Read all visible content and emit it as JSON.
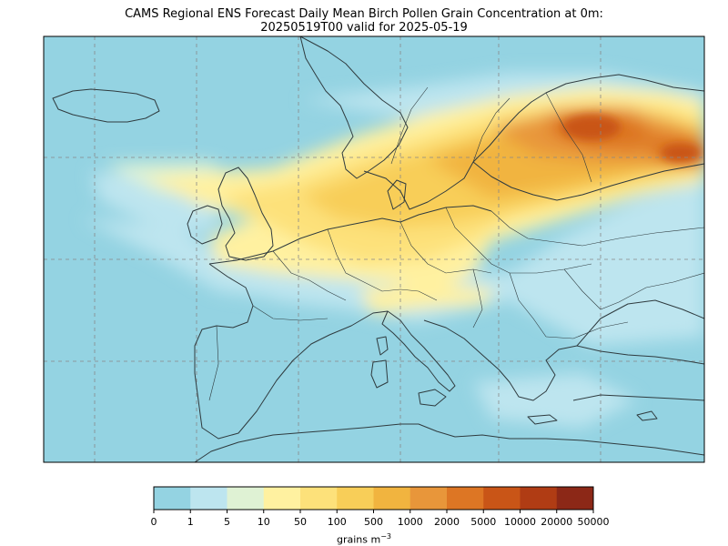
{
  "title": {
    "line1": "CAMS Regional ENS Forecast Daily Mean Birch Pollen Grain Concentration at 0m:",
    "line2": "20250519T00 valid for 2025-05-19"
  },
  "colorbar": {
    "ticks": [
      "0",
      "1",
      "5",
      "10",
      "50",
      "100",
      "500",
      "1000",
      "2000",
      "5000",
      "10000",
      "20000",
      "50000"
    ],
    "colors": [
      "#94d3e2",
      "#bde5ef",
      "#dff2d4",
      "#fff1a0",
      "#fde17a",
      "#f8ce58",
      "#f1b43f",
      "#e8963a",
      "#dd7624",
      "#c95517",
      "#b03c14",
      "#8c2817"
    ],
    "unit_label": "grains m",
    "unit_exponent": "−3"
  },
  "map": {
    "ocean_color": "#94d3e2",
    "border_color": "#2f3b3f",
    "gridline_color": "#888888"
  }
}
